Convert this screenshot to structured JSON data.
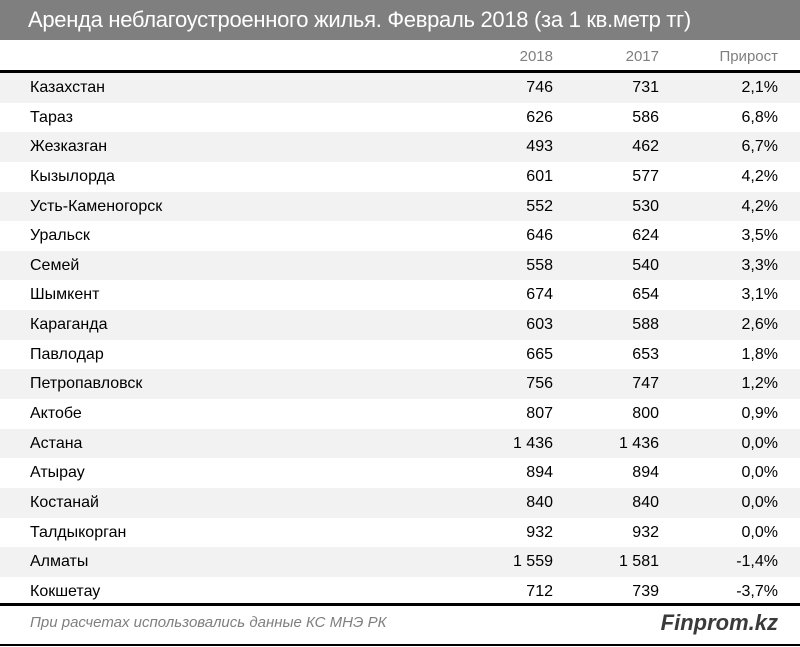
{
  "title": "Аренда неблагоустроенного жилья. Февраль 2018 (за 1 кв.метр тг)",
  "chart_data": {
    "type": "table",
    "columns": [
      "",
      "2018",
      "2017",
      "Прирост"
    ],
    "rows": [
      {
        "city": "Казахстан",
        "y2018": "746",
        "y2017": "731",
        "growth": "2,1%"
      },
      {
        "city": "Тараз",
        "y2018": "626",
        "y2017": "586",
        "growth": "6,8%"
      },
      {
        "city": "Жезказган",
        "y2018": "493",
        "y2017": "462",
        "growth": "6,7%"
      },
      {
        "city": "Кызылорда",
        "y2018": "601",
        "y2017": "577",
        "growth": "4,2%"
      },
      {
        "city": "Усть-Каменогорск",
        "y2018": "552",
        "y2017": "530",
        "growth": "4,2%"
      },
      {
        "city": "Уральск",
        "y2018": "646",
        "y2017": "624",
        "growth": "3,5%"
      },
      {
        "city": "Семей",
        "y2018": "558",
        "y2017": "540",
        "growth": "3,3%"
      },
      {
        "city": "Шымкент",
        "y2018": "674",
        "y2017": "654",
        "growth": "3,1%"
      },
      {
        "city": "Караганда",
        "y2018": "603",
        "y2017": "588",
        "growth": "2,6%"
      },
      {
        "city": "Павлодар",
        "y2018": "665",
        "y2017": "653",
        "growth": "1,8%"
      },
      {
        "city": "Петропавловск",
        "y2018": "756",
        "y2017": "747",
        "growth": "1,2%"
      },
      {
        "city": "Актобе",
        "y2018": "807",
        "y2017": "800",
        "growth": "0,9%"
      },
      {
        "city": "Астана",
        "y2018": "1 436",
        "y2017": "1 436",
        "growth": "0,0%"
      },
      {
        "city": "Атырау",
        "y2018": "894",
        "y2017": "894",
        "growth": "0,0%"
      },
      {
        "city": "Костанай",
        "y2018": "840",
        "y2017": "840",
        "growth": "0,0%"
      },
      {
        "city": "Талдыкорган",
        "y2018": "932",
        "y2017": "932",
        "growth": "0,0%"
      },
      {
        "city": "Алматы",
        "y2018": "1 559",
        "y2017": "1 581",
        "growth": "-1,4%"
      },
      {
        "city": "Кокшетау",
        "y2018": "712",
        "y2017": "739",
        "growth": "-3,7%"
      }
    ]
  },
  "footer": {
    "source": "При расчетах использовались данные КС МНЭ РК",
    "brand": "Finprom.kz"
  }
}
